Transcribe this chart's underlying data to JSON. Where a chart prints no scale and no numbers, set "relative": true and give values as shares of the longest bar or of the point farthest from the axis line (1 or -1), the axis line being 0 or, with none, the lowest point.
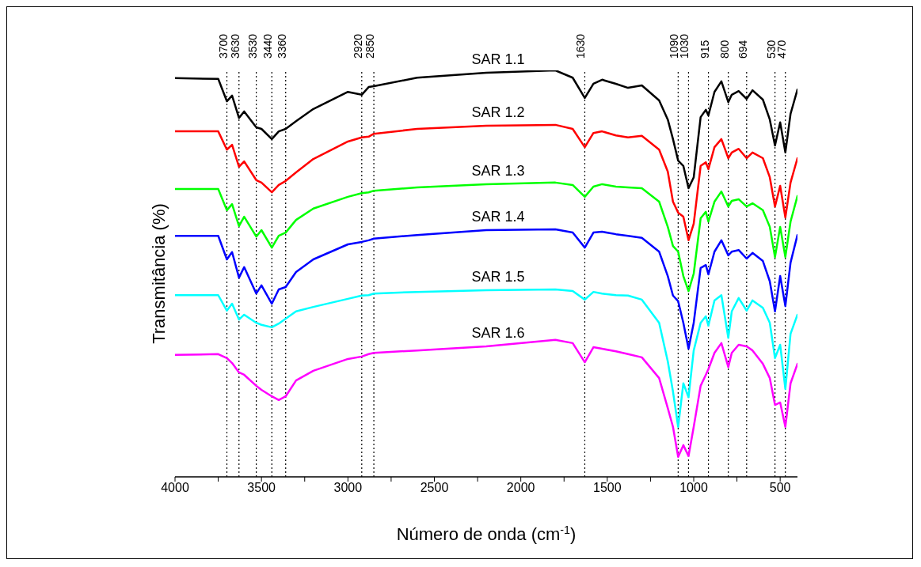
{
  "chart_data": {
    "type": "line",
    "relative": true,
    "xlabel": "Número de onda (cm$^{-1}$)",
    "ylabel": "Transmitância (%)",
    "x": [
      4000,
      3750,
      3700,
      3670,
      3630,
      3600,
      3530,
      3500,
      3440,
      3400,
      3360,
      3300,
      3200,
      3000,
      2920,
      2880,
      2850,
      2600,
      2200,
      1800,
      1700,
      1630,
      1580,
      1530,
      1450,
      1380,
      1300,
      1200,
      1150,
      1120,
      1090,
      1060,
      1030,
      1000,
      960,
      930,
      915,
      880,
      840,
      800,
      780,
      740,
      694,
      660,
      600,
      560,
      530,
      500,
      470,
      440,
      400
    ],
    "xlim": [
      4000,
      400
    ],
    "xticks": [
      4000,
      {
        "value": 3750,
        "label": null
      },
      3500,
      {
        "value": 3250,
        "label": null
      },
      3000,
      {
        "value": 2750,
        "label": null
      },
      2500,
      {
        "value": 2250,
        "label": null
      },
      2000,
      {
        "value": 1750,
        "label": null
      },
      1500,
      {
        "value": 1250,
        "label": null
      },
      1000,
      {
        "value": 750,
        "label": null
      },
      500
    ],
    "series": [
      {
        "name": "SAR 1.1",
        "color": "#000000",
        "values": [
          0.981,
          0.979,
          0.924,
          0.938,
          0.883,
          0.899,
          0.86,
          0.856,
          0.831,
          0.85,
          0.856,
          0.875,
          0.905,
          0.947,
          0.94,
          0.959,
          0.961,
          0.982,
          0.994,
          1.0,
          0.982,
          0.932,
          0.967,
          0.977,
          0.967,
          0.957,
          0.963,
          0.926,
          0.879,
          0.831,
          0.778,
          0.765,
          0.71,
          0.737,
          0.885,
          0.903,
          0.889,
          0.947,
          0.973,
          0.922,
          0.94,
          0.949,
          0.93,
          0.951,
          0.928,
          0.879,
          0.815,
          0.872,
          0.798,
          0.893,
          0.953
        ]
      },
      {
        "name": "SAR 1.2",
        "color": "#ff0000",
        "values": [
          0.85,
          0.85,
          0.805,
          0.817,
          0.763,
          0.776,
          0.73,
          0.724,
          0.7,
          0.718,
          0.728,
          0.749,
          0.782,
          0.825,
          0.835,
          0.837,
          0.844,
          0.856,
          0.864,
          0.866,
          0.856,
          0.811,
          0.846,
          0.85,
          0.84,
          0.835,
          0.839,
          0.805,
          0.751,
          0.677,
          0.65,
          0.64,
          0.582,
          0.623,
          0.765,
          0.774,
          0.757,
          0.811,
          0.831,
          0.784,
          0.798,
          0.807,
          0.784,
          0.798,
          0.784,
          0.737,
          0.665,
          0.716,
          0.638,
          0.724,
          0.784
        ]
      },
      {
        "name": "SAR 1.3",
        "color": "#00ff00",
        "values": [
          0.708,
          0.708,
          0.656,
          0.671,
          0.617,
          0.64,
          0.591,
          0.607,
          0.564,
          0.593,
          0.601,
          0.632,
          0.66,
          0.689,
          0.698,
          0.7,
          0.704,
          0.712,
          0.72,
          0.724,
          0.718,
          0.689,
          0.714,
          0.72,
          0.714,
          0.712,
          0.71,
          0.677,
          0.615,
          0.568,
          0.554,
          0.494,
          0.457,
          0.5,
          0.636,
          0.652,
          0.628,
          0.677,
          0.702,
          0.665,
          0.679,
          0.683,
          0.665,
          0.673,
          0.656,
          0.615,
          0.541,
          0.615,
          0.541,
          0.628,
          0.691
        ]
      },
      {
        "name": "SAR 1.4",
        "color": "#0000ff",
        "values": [
          0.593,
          0.593,
          0.535,
          0.553,
          0.49,
          0.516,
          0.451,
          0.471,
          0.426,
          0.461,
          0.467,
          0.504,
          0.535,
          0.572,
          0.578,
          0.582,
          0.586,
          0.595,
          0.607,
          0.609,
          0.601,
          0.564,
          0.601,
          0.603,
          0.597,
          0.593,
          0.588,
          0.554,
          0.494,
          0.446,
          0.432,
          0.379,
          0.315,
          0.379,
          0.514,
          0.521,
          0.498,
          0.554,
          0.582,
          0.545,
          0.554,
          0.558,
          0.537,
          0.551,
          0.531,
          0.481,
          0.407,
          0.494,
          0.42,
          0.527,
          0.595
        ]
      },
      {
        "name": "SAR 1.5",
        "color": "#00ffff",
        "values": [
          0.447,
          0.447,
          0.409,
          0.426,
          0.387,
          0.399,
          0.379,
          0.374,
          0.368,
          0.377,
          0.389,
          0.407,
          0.418,
          0.438,
          0.446,
          0.447,
          0.451,
          0.455,
          0.459,
          0.461,
          0.457,
          0.436,
          0.455,
          0.451,
          0.447,
          0.446,
          0.436,
          0.379,
          0.284,
          0.21,
          0.123,
          0.23,
          0.196,
          0.311,
          0.379,
          0.395,
          0.372,
          0.434,
          0.447,
          0.342,
          0.407,
          0.44,
          0.409,
          0.434,
          0.416,
          0.379,
          0.292,
          0.325,
          0.216,
          0.352,
          0.399
        ]
      },
      {
        "name": "SAR 1.6",
        "color": "#ff00ff",
        "values": [
          0.3,
          0.302,
          0.292,
          0.28,
          0.257,
          0.251,
          0.224,
          0.214,
          0.198,
          0.189,
          0.198,
          0.237,
          0.261,
          0.29,
          0.296,
          0.302,
          0.305,
          0.311,
          0.321,
          0.337,
          0.329,
          0.282,
          0.319,
          0.315,
          0.309,
          0.302,
          0.294,
          0.243,
          0.169,
          0.123,
          0.049,
          0.078,
          0.051,
          0.123,
          0.224,
          0.251,
          0.265,
          0.305,
          0.329,
          0.27,
          0.305,
          0.325,
          0.321,
          0.311,
          0.278,
          0.243,
          0.177,
          0.183,
          0.123,
          0.23,
          0.278
        ]
      }
    ],
    "ref_lines": [
      {
        "axis": "x",
        "value": 3700,
        "label": "3700",
        "color": "#000000",
        "line_style": "dotted"
      },
      {
        "axis": "x",
        "value": 3630,
        "label": "3630",
        "color": "#000000",
        "line_style": "dotted"
      },
      {
        "axis": "x",
        "value": 3530,
        "label": "3530",
        "color": "#000000",
        "line_style": "dotted"
      },
      {
        "axis": "x",
        "value": 3440,
        "label": "3440",
        "color": "#000000",
        "line_style": "dotted"
      },
      {
        "axis": "x",
        "value": 3360,
        "label": "3360",
        "color": "#000000",
        "line_style": "dotted"
      },
      {
        "axis": "x",
        "value": 2920,
        "label": "2920",
        "color": "#000000",
        "line_style": "dotted"
      },
      {
        "axis": "x",
        "value": 2850,
        "label": "2850",
        "color": "#000000",
        "line_style": "dotted"
      },
      {
        "axis": "x",
        "value": 1630,
        "label": "1630",
        "color": "#000000",
        "line_style": "dotted"
      },
      {
        "axis": "x",
        "value": 1090,
        "label": "1090",
        "color": "#000000",
        "line_style": "dotted"
      },
      {
        "axis": "x",
        "value": 1030,
        "label": "1030",
        "color": "#000000",
        "line_style": "dotted"
      },
      {
        "axis": "x",
        "value": 915,
        "label": "915",
        "color": "#000000",
        "line_style": "dotted"
      },
      {
        "axis": "x",
        "value": 800,
        "label": "800",
        "color": "#000000",
        "line_style": "dotted"
      },
      {
        "axis": "x",
        "value": 694,
        "label": "694",
        "color": "#000000",
        "line_style": "dotted"
      },
      {
        "axis": "x",
        "value": 530,
        "label": "530",
        "color": "#000000",
        "line_style": "dotted"
      },
      {
        "axis": "x",
        "value": 470,
        "label": "470",
        "color": "#000000",
        "line_style": "dotted"
      }
    ],
    "grid": false,
    "legend": false,
    "marker": "none",
    "line_style": "solid"
  }
}
